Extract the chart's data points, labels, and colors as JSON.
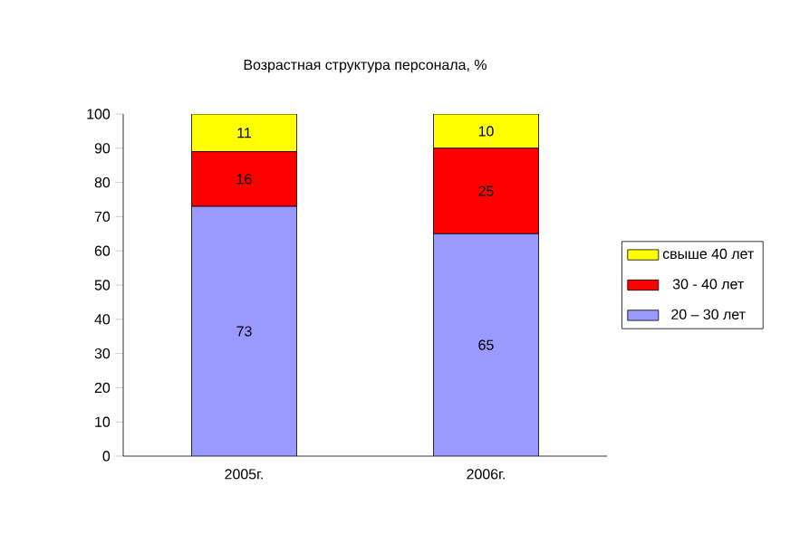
{
  "chart_data": {
    "type": "bar",
    "title": "Возрастная структура персонала, %",
    "stacked": true,
    "categories": [
      "2005г.",
      "2006г."
    ],
    "series": [
      {
        "name": "20 – 30 лет",
        "color": "#9999ff",
        "values": [
          73,
          65
        ]
      },
      {
        "name": "30 - 40 лет",
        "color": "#ff0000",
        "values": [
          16,
          25
        ]
      },
      {
        "name": "свыше 40 лет",
        "color": "#ffff00",
        "values": [
          11,
          10
        ]
      }
    ],
    "ylim": [
      0,
      100
    ],
    "yticks": [
      0,
      10,
      20,
      30,
      40,
      50,
      60,
      70,
      80,
      90,
      100
    ],
    "legend": "right",
    "data_labels": true
  }
}
